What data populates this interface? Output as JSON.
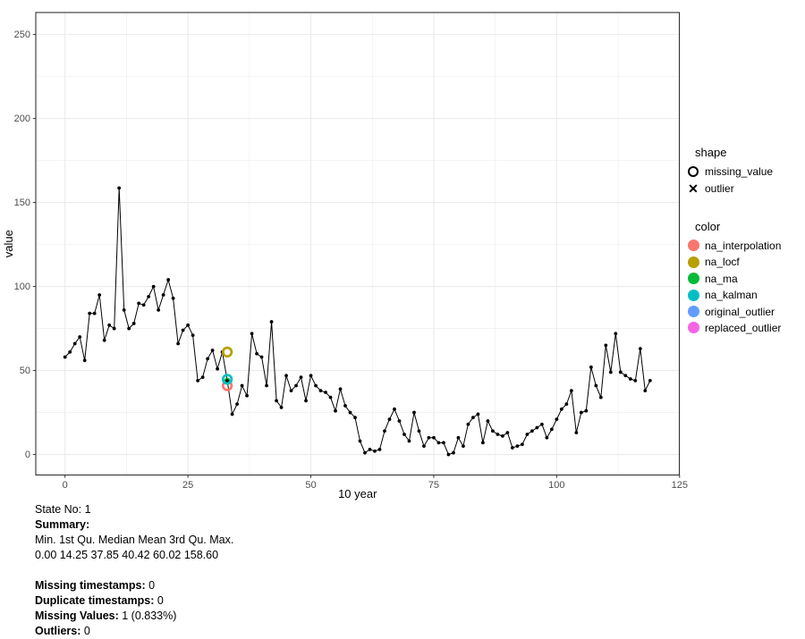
{
  "chart_data": {
    "type": "line",
    "title": "",
    "xlabel": "10 year",
    "ylabel": "value",
    "x_start": 0,
    "x_step": 1,
    "values": [
      58,
      61,
      66,
      70,
      56,
      84,
      84,
      95,
      68,
      77,
      75,
      158.6,
      86,
      75,
      78,
      90,
      89,
      94,
      100,
      86,
      95,
      104,
      93,
      66,
      74,
      77,
      71,
      44,
      46,
      57,
      62,
      51,
      61,
      null,
      24,
      30,
      41,
      35,
      72,
      60,
      58,
      41,
      79,
      32,
      28,
      47,
      38,
      41,
      46,
      32,
      47,
      41,
      38,
      37,
      34,
      26,
      39,
      29,
      25,
      22,
      8,
      1,
      3,
      2,
      3,
      14,
      21,
      27,
      20,
      12,
      8,
      25,
      14,
      5,
      10,
      10,
      7,
      7,
      0,
      1,
      10,
      5,
      18,
      22,
      24,
      7,
      20,
      14,
      12,
      11,
      13,
      4,
      5,
      6,
      12,
      14,
      16,
      18,
      10,
      15,
      21,
      27,
      30,
      38,
      13,
      25,
      26,
      52,
      41,
      34,
      65,
      49,
      72,
      49,
      47,
      45,
      44,
      63,
      38,
      44
    ],
    "missing_index": 33,
    "line_value_at_missing": 44,
    "imputations": [
      {
        "name": "na_interpolation",
        "value": 41,
        "color": "#F8766D",
        "marker": "ring"
      },
      {
        "name": "na_locf",
        "value": 61,
        "color": "#B79F00",
        "marker": "ring"
      },
      {
        "name": "na_ma",
        "value": 44,
        "color": "#00BA38",
        "marker": "dot"
      },
      {
        "name": "na_kalman",
        "value": 44.8,
        "color": "#00BFC4",
        "marker": "ring"
      }
    ],
    "x_ticks": [
      0,
      25,
      50,
      75,
      100,
      125
    ],
    "y_ticks": [
      0,
      50,
      100,
      150,
      200,
      250
    ],
    "x_minor": [
      12.5,
      37.5,
      62.5,
      87.5,
      112.5
    ],
    "y_minor": [
      25,
      75,
      125,
      175,
      225
    ],
    "xlim": [
      -5.95,
      124.95
    ],
    "ylim": [
      -12.2,
      263.1
    ],
    "grid": true,
    "legend_position": "right",
    "series_color": "#000000",
    "grid_color": "#ebebeb",
    "border_color": "#333333",
    "tick_text_color": "#4d4d4d"
  },
  "legend": {
    "shape": {
      "title": "shape",
      "items": [
        {
          "label": "missing_value",
          "glyph": "open-circle"
        },
        {
          "label": "outlier",
          "glyph": "x",
          "glyph_char": "✕"
        }
      ]
    },
    "color": {
      "title": "color",
      "items": [
        {
          "label": "na_interpolation",
          "color": "#F8766D"
        },
        {
          "label": "na_locf",
          "color": "#B79F00"
        },
        {
          "label": "na_ma",
          "color": "#00BA38"
        },
        {
          "label": "na_kalman",
          "color": "#00BFC4"
        },
        {
          "label": "original_outlier",
          "color": "#619CFF"
        },
        {
          "label": "replaced_outlier",
          "color": "#F564E3"
        }
      ]
    }
  },
  "footer": {
    "state_line": "State No: 1",
    "summary_title": "Summary:",
    "summary_header": "Min. 1st Qu. Median Mean 3rd Qu. Max.",
    "summary_values": "0.00 14.25 37.85 40.42 60.02 158.60",
    "stats": [
      {
        "label": "Missing timestamps:",
        "value": " 0"
      },
      {
        "label": "Duplicate timestamps:",
        "value": " 0"
      },
      {
        "label": "Missing Values:",
        "value": " 1 (0.833%)"
      },
      {
        "label": "Outliers:",
        "value": " 0"
      }
    ]
  }
}
